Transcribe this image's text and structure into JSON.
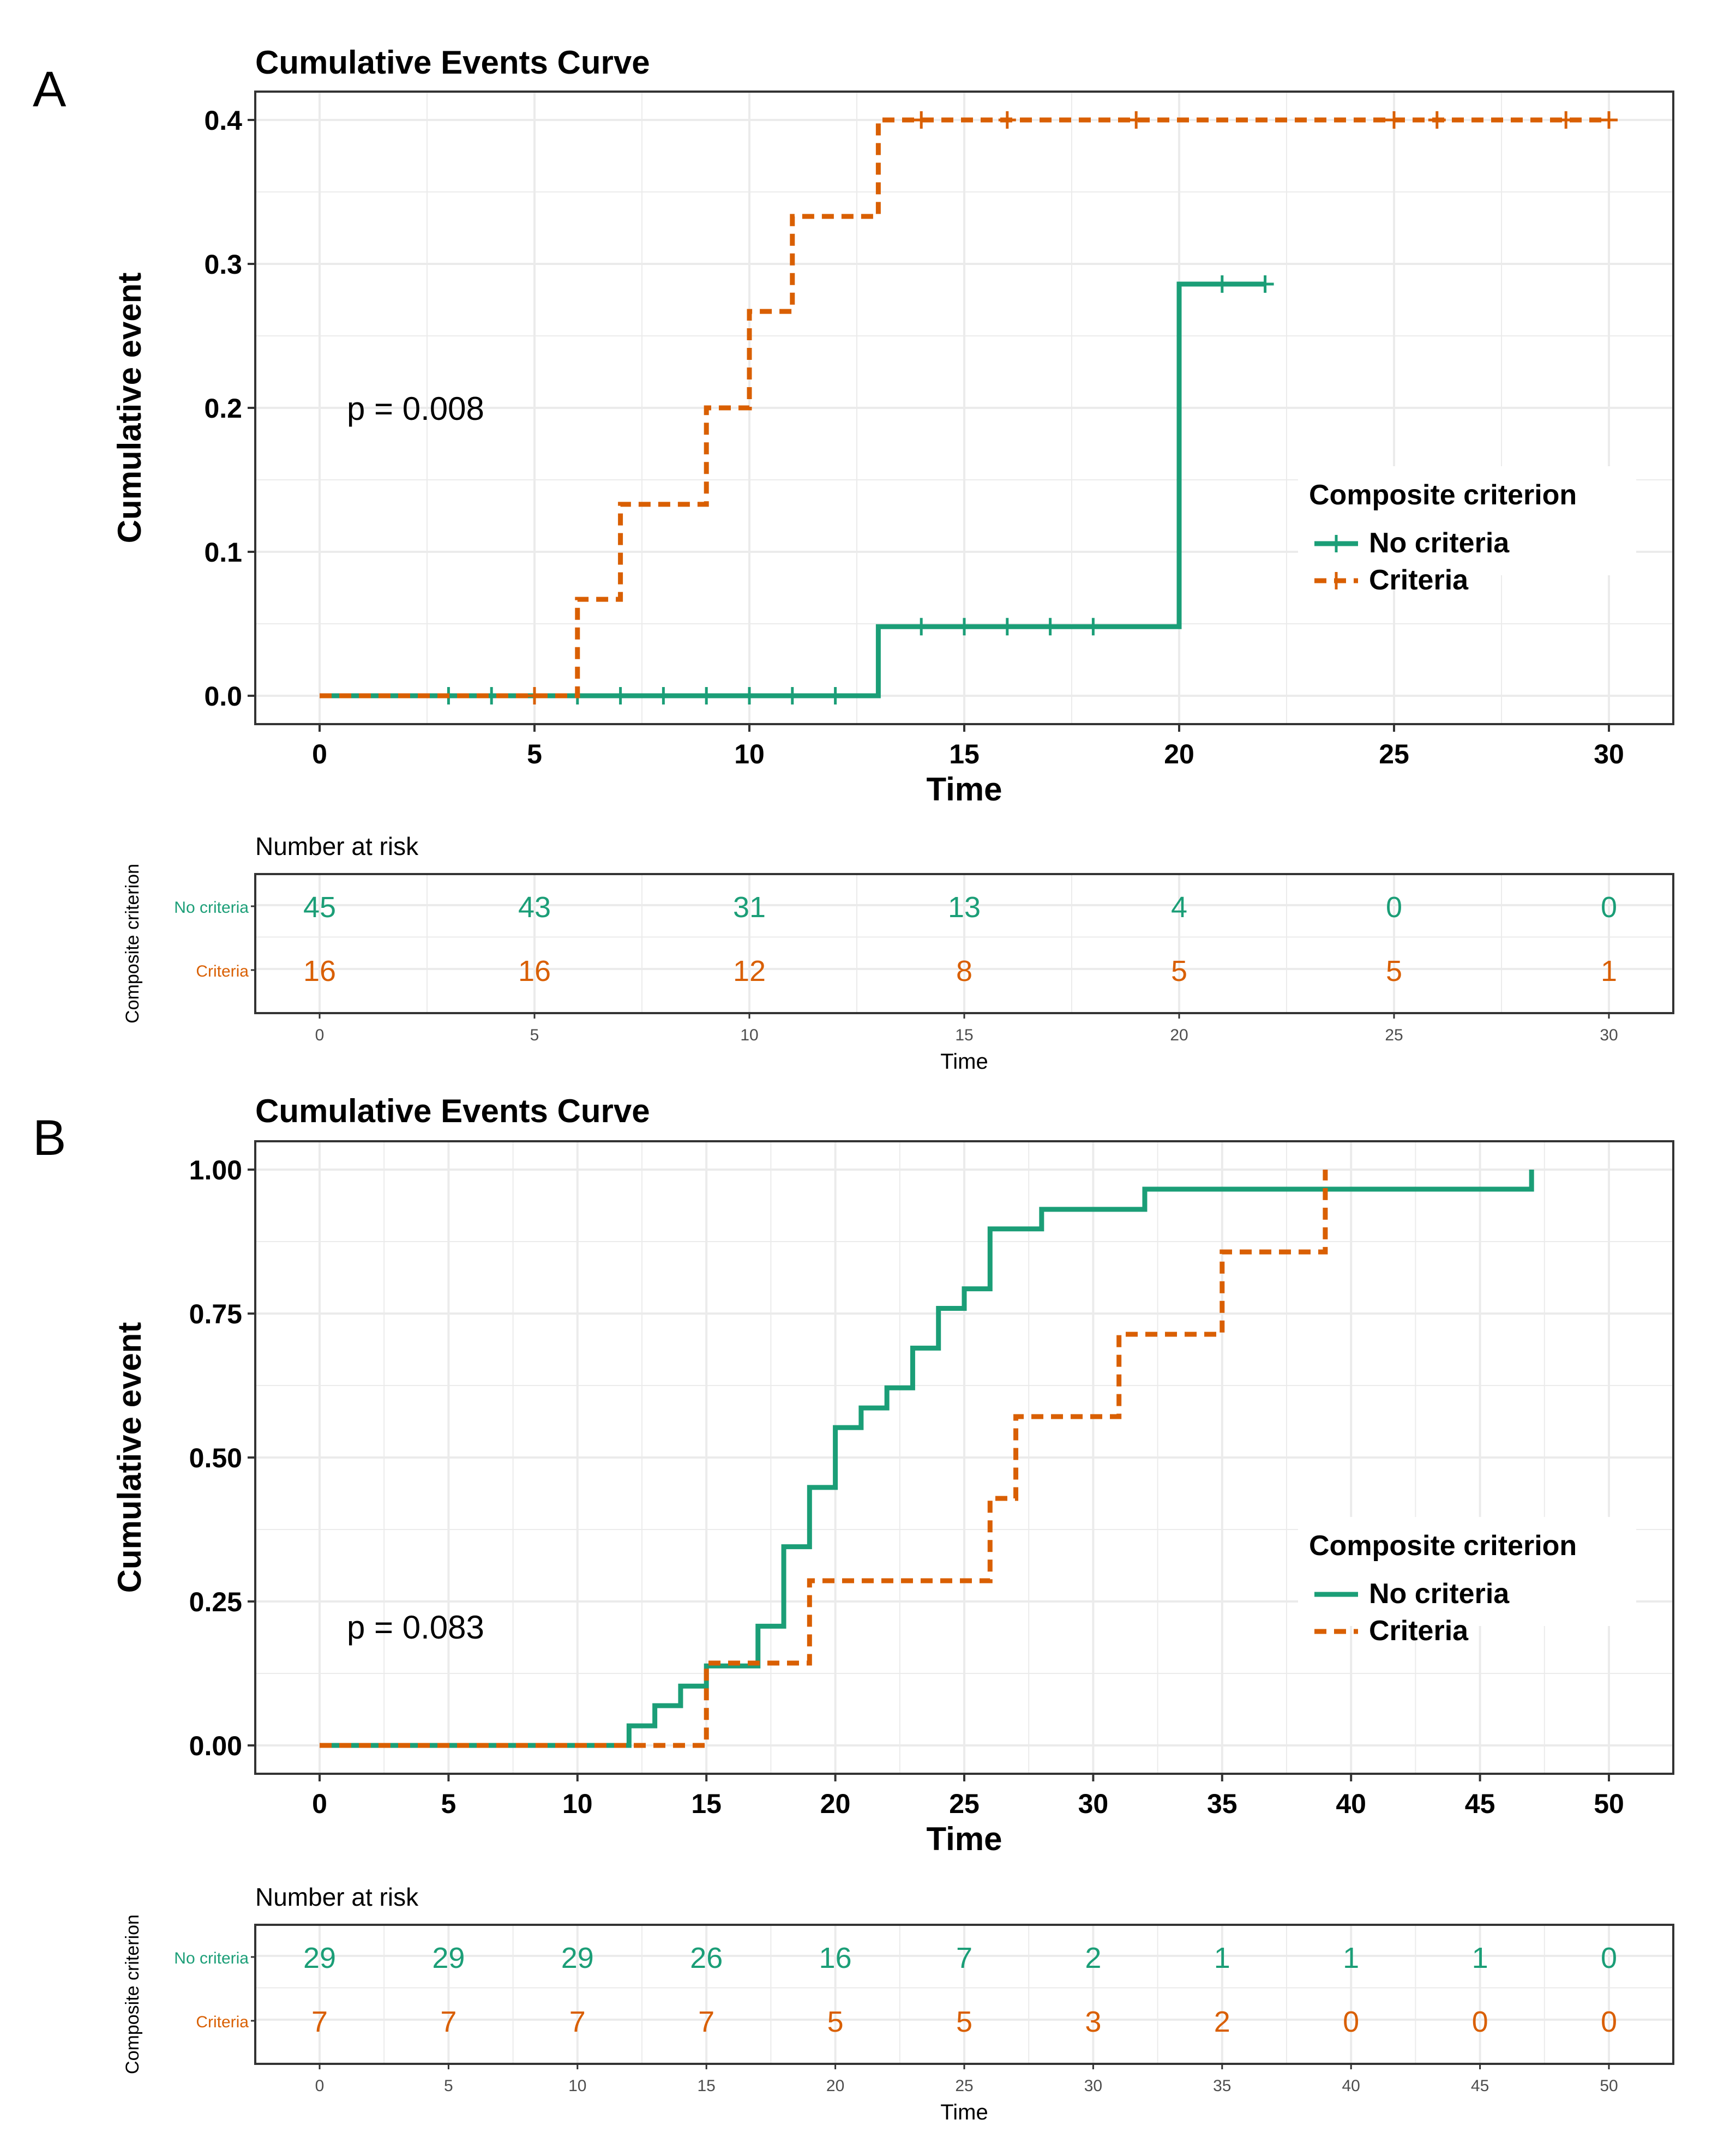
{
  "panels": [
    {
      "label": "A",
      "chart_data": {
        "type": "line",
        "title": "Cumulative Events Curve",
        "xlabel": "Time",
        "ylabel": "Cumulative event",
        "xlim": [
          0,
          30
        ],
        "ylim": [
          0,
          0.4
        ],
        "x_ticks": [
          0,
          5,
          10,
          15,
          20,
          25,
          30
        ],
        "y_ticks": [
          0.0,
          0.1,
          0.2,
          0.3,
          0.4
        ],
        "y_tick_labels": [
          "0.0",
          "0.1",
          "0.2",
          "0.3",
          "0.4"
        ],
        "grid": true,
        "annotation": "p = 0.008",
        "legend_title": "Composite criterion",
        "legend_position": "right",
        "legend_show_censor": true,
        "series": [
          {
            "name": "No criteria",
            "color": "#1b9e77",
            "dash": "solid",
            "steps": [
              [
                0,
                0.0
              ],
              [
                13,
                0.048
              ],
              [
                20,
                0.286
              ]
            ],
            "end_x": 22,
            "censor": [
              [
                3,
                0.0
              ],
              [
                4,
                0.0
              ],
              [
                6,
                0.0
              ],
              [
                7,
                0.0
              ],
              [
                8,
                0.0
              ],
              [
                9,
                0.0
              ],
              [
                10,
                0.0
              ],
              [
                11,
                0.0
              ],
              [
                12,
                0.0
              ],
              [
                14,
                0.048
              ],
              [
                15,
                0.048
              ],
              [
                16,
                0.048
              ],
              [
                17,
                0.048
              ],
              [
                18,
                0.048
              ],
              [
                21,
                0.286
              ],
              [
                22,
                0.286
              ]
            ]
          },
          {
            "name": "Criteria",
            "color": "#d95f02",
            "dash": "dashed",
            "steps": [
              [
                0,
                0.0
              ],
              [
                6,
                0.067
              ],
              [
                7,
                0.133
              ],
              [
                9,
                0.2
              ],
              [
                10,
                0.267
              ],
              [
                11,
                0.333
              ],
              [
                13,
                0.4
              ]
            ],
            "end_x": 30,
            "censor": [
              [
                5,
                0.0
              ],
              [
                14,
                0.4
              ],
              [
                16,
                0.4
              ],
              [
                19,
                0.4
              ],
              [
                25,
                0.4
              ],
              [
                26,
                0.4
              ],
              [
                29,
                0.4
              ],
              [
                30,
                0.4
              ]
            ]
          }
        ],
        "risk_table": {
          "title": "Number at risk",
          "ylabel": "Composite criterion",
          "xlabel": "Time",
          "times": [
            0,
            5,
            10,
            15,
            20,
            25,
            30
          ],
          "rows": [
            {
              "name": "No criteria",
              "color": "#1b9e77",
              "values": [
                "45",
                "43",
                "31",
                "13",
                "4",
                "0",
                "0"
              ]
            },
            {
              "name": "Criteria",
              "color": "#d95f02",
              "values": [
                "16",
                "16",
                "12",
                "8",
                "5",
                "5",
                "1"
              ]
            }
          ]
        }
      }
    },
    {
      "label": "B",
      "chart_data": {
        "type": "line",
        "title": "Cumulative Events Curve",
        "xlabel": "Time",
        "ylabel": "Cumulative event",
        "xlim": [
          0,
          50
        ],
        "ylim": [
          0,
          1
        ],
        "x_ticks": [
          0,
          5,
          10,
          15,
          20,
          25,
          30,
          35,
          40,
          45,
          50
        ],
        "y_ticks": [
          0.0,
          0.25,
          0.5,
          0.75,
          1.0
        ],
        "y_tick_labels": [
          "0.00",
          "0.25",
          "0.50",
          "0.75",
          "1.00"
        ],
        "grid": true,
        "annotation": "p = 0.083",
        "legend_title": "Composite criterion",
        "legend_position": "right",
        "legend_show_censor": false,
        "series": [
          {
            "name": "No criteria",
            "color": "#1b9e77",
            "dash": "solid",
            "steps": [
              [
                0,
                0.0
              ],
              [
                12,
                0.034
              ],
              [
                13,
                0.069
              ],
              [
                14,
                0.103
              ],
              [
                15,
                0.138
              ],
              [
                17,
                0.207
              ],
              [
                18,
                0.345
              ],
              [
                19,
                0.448
              ],
              [
                20,
                0.552
              ],
              [
                21,
                0.586
              ],
              [
                22,
                0.621
              ],
              [
                23,
                0.69
              ],
              [
                24,
                0.759
              ],
              [
                25,
                0.793
              ],
              [
                26,
                0.897
              ],
              [
                28,
                0.931
              ],
              [
                32,
                0.966
              ],
              [
                47,
                1.0
              ]
            ],
            "end_x": 47,
            "censor": []
          },
          {
            "name": "Criteria",
            "color": "#d95f02",
            "dash": "dashed",
            "steps": [
              [
                0,
                0.0
              ],
              [
                15,
                0.143
              ],
              [
                19,
                0.286
              ],
              [
                26,
                0.429
              ],
              [
                27,
                0.571
              ],
              [
                31,
                0.714
              ],
              [
                35,
                0.857
              ],
              [
                39,
                1.0
              ]
            ],
            "end_x": 39,
            "censor": []
          }
        ],
        "risk_table": {
          "title": "Number at risk",
          "ylabel": "Composite criterion",
          "xlabel": "Time",
          "times": [
            0,
            5,
            10,
            15,
            20,
            25,
            30,
            35,
            40,
            45,
            50
          ],
          "rows": [
            {
              "name": "No criteria",
              "color": "#1b9e77",
              "values": [
                "29",
                "29",
                "29",
                "26",
                "16",
                "7",
                "2",
                "1",
                "1",
                "1",
                "0"
              ]
            },
            {
              "name": "Criteria",
              "color": "#d95f02",
              "values": [
                "7",
                "7",
                "7",
                "7",
                "5",
                "5",
                "3",
                "2",
                "0",
                "0",
                "0"
              ]
            }
          ]
        }
      }
    }
  ]
}
